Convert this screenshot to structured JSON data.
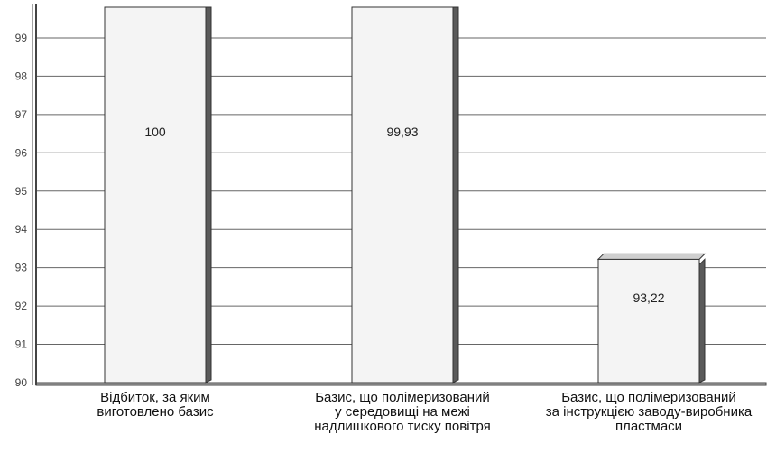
{
  "chart_data": {
    "type": "bar",
    "categories": [
      [
        "Відбиток, за яким",
        "виготовлено базис"
      ],
      [
        "Базис, що полімеризований",
        "у середовищі на межі",
        "надлишкового тиску повітря"
      ],
      [
        "Базис, що полімеризований",
        "за інструкцією заводу-виробника",
        "пластмаси"
      ]
    ],
    "values": [
      100,
      99.93,
      93.22
    ],
    "value_labels": [
      "100",
      "99,93",
      "93,22"
    ],
    "ylim": [
      90,
      99.8
    ],
    "yticks": [
      90,
      91,
      92,
      93,
      94,
      95,
      96,
      97,
      98,
      99
    ],
    "grid": true,
    "legend": "none",
    "title": "",
    "xlabel": "",
    "ylabel": "",
    "colors": {
      "bar_face": "#f4f4f4",
      "bar_side": "#5a5a5a",
      "bar_edge": "#333333",
      "grid": "#666666",
      "floor": "#bdbdbd",
      "axis": "#444444"
    }
  }
}
